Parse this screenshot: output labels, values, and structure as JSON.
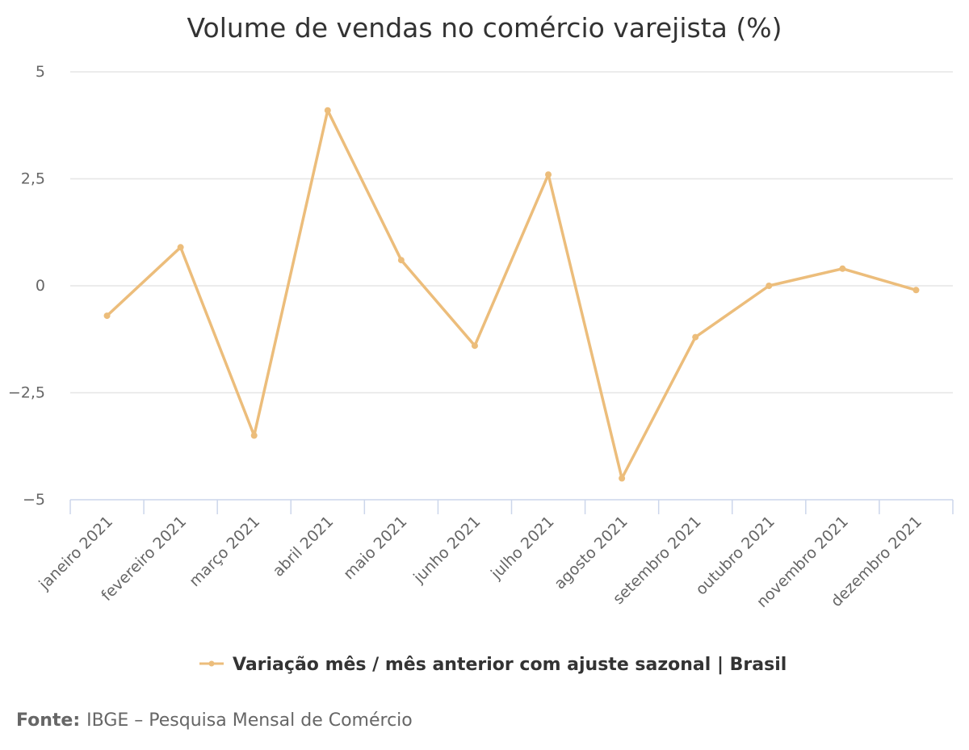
{
  "chart_data": {
    "type": "line",
    "title": "Volume de vendas no comércio varejista (%)",
    "categories": [
      "janeiro 2021",
      "fevereiro 2021",
      "março 2021",
      "abril 2021",
      "maio 2021",
      "junho 2021",
      "julho 2021",
      "agosto 2021",
      "setembro 2021",
      "outubro 2021",
      "novembro 2021",
      "dezembro 2021"
    ],
    "series": [
      {
        "name": "Variação mês / mês anterior com ajuste sazonal | Brasil",
        "color": "#ecbd7b",
        "values": [
          -0.7,
          0.9,
          -3.5,
          4.1,
          0.6,
          -1.4,
          2.6,
          -4.5,
          -1.2,
          0.0,
          0.4,
          -0.1
        ]
      }
    ],
    "ylim": [
      -5,
      5
    ],
    "yticks": [
      5,
      2.5,
      0,
      -2.5,
      -5
    ],
    "ytick_labels": [
      "5",
      "2,5",
      "0",
      "−2,5",
      "−5"
    ],
    "grid": true,
    "legend": "bottom-center"
  },
  "source": {
    "label": "Fonte:",
    "text": "IBGE – Pesquisa Mensal de Comércio"
  }
}
